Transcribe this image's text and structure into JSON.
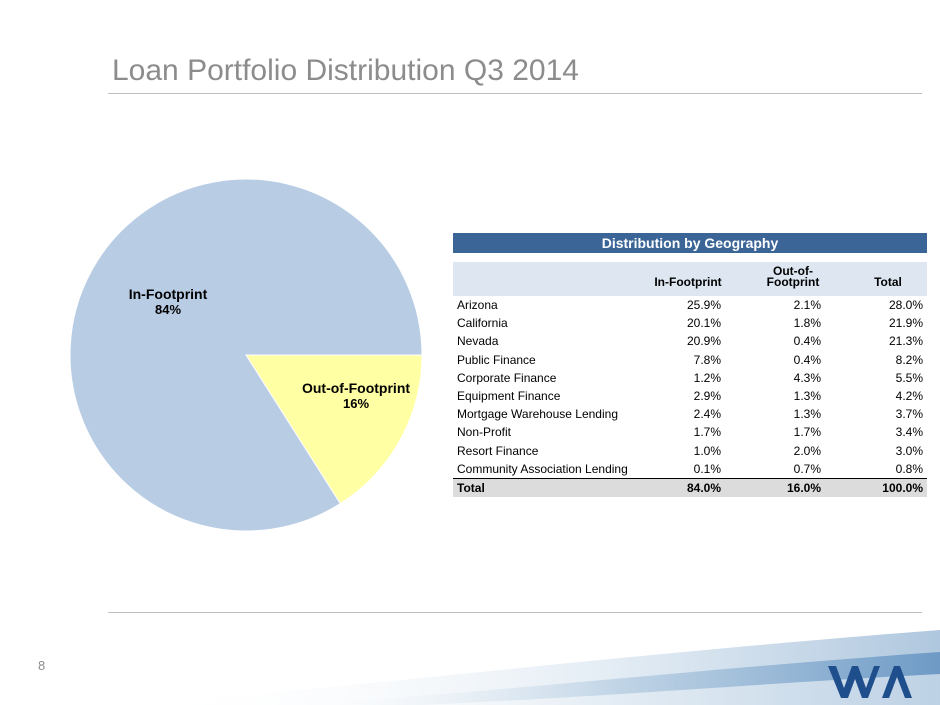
{
  "slide": {
    "title": "Loan Portfolio Distribution Q3 2014",
    "page_number": "8"
  },
  "chart_data": {
    "type": "pie",
    "categories": [
      "In-Footprint",
      "Out-of-Footprint"
    ],
    "values": [
      84,
      16
    ],
    "labels": [
      {
        "name": "In-Footprint",
        "pct": "84%"
      },
      {
        "name": "Out-of-Footprint",
        "pct": "16%"
      }
    ],
    "colors": [
      "#b8cce4",
      "#ffffa3"
    ],
    "title": ""
  },
  "table": {
    "header": "Distribution by Geography",
    "columns": [
      "",
      "In-Footprint",
      "Out-of-\nFootprint",
      "Total"
    ],
    "rows": [
      {
        "name": "Arizona",
        "in": "25.9%",
        "out": "2.1%",
        "total": "28.0%"
      },
      {
        "name": "California",
        "in": "20.1%",
        "out": "1.8%",
        "total": "21.9%"
      },
      {
        "name": "Nevada",
        "in": "20.9%",
        "out": "0.4%",
        "total": "21.3%"
      },
      {
        "name": "Public Finance",
        "in": "7.8%",
        "out": "0.4%",
        "total": "8.2%"
      },
      {
        "name": "Corporate Finance",
        "in": "1.2%",
        "out": "4.3%",
        "total": "5.5%"
      },
      {
        "name": "Equipment Finance",
        "in": "2.9%",
        "out": "1.3%",
        "total": "4.2%"
      },
      {
        "name": "Mortgage Warehouse Lending",
        "in": "2.4%",
        "out": "1.3%",
        "total": "3.7%"
      },
      {
        "name": "Non-Profit",
        "in": "1.7%",
        "out": "1.7%",
        "total": "3.4%"
      },
      {
        "name": "Resort Finance",
        "in": "1.0%",
        "out": "2.0%",
        "total": "3.0%"
      },
      {
        "name": "Community Association Lending",
        "in": "0.1%",
        "out": "0.7%",
        "total": "0.8%"
      }
    ],
    "total_row": {
      "name": "Total",
      "in": "84.0%",
      "out": "16.0%",
      "total": "100.0%"
    }
  },
  "logo": {
    "icon": "wa-logo-icon",
    "color": "#1f4e8c"
  }
}
